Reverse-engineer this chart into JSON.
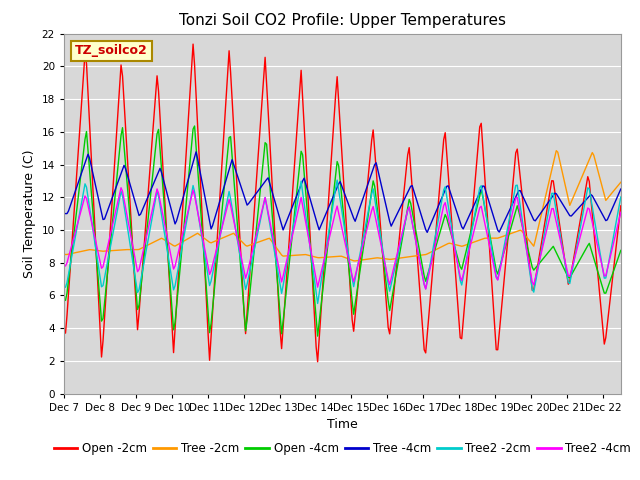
{
  "title": "Tonzi Soil CO2 Profile: Upper Temperatures",
  "xlabel": "Time",
  "ylabel": "Soil Temperature (C)",
  "annotation": "TZ_soilco2",
  "ylim": [
    0,
    22
  ],
  "xlim": [
    0,
    15.5
  ],
  "yticks": [
    0,
    2,
    4,
    6,
    8,
    10,
    12,
    14,
    16,
    18,
    20,
    22
  ],
  "xtick_labels": [
    "Dec 7",
    "Dec 8",
    "Dec 9",
    "Dec 10",
    "Dec 11",
    "Dec 12",
    "Dec 13",
    "Dec 14",
    "Dec 15",
    "Dec 16",
    "Dec 17",
    "Dec 18",
    "Dec 19",
    "Dec 20",
    "Dec 21",
    "Dec 22"
  ],
  "series_colors": [
    "#ff0000",
    "#ff9900",
    "#00cc00",
    "#0000cc",
    "#00cccc",
    "#ff00ff"
  ],
  "series_labels": [
    "Open -2cm",
    "Tree -2cm",
    "Open -4cm",
    "Tree -4cm",
    "Tree2 -2cm",
    "Tree2 -4cm"
  ],
  "plot_bg_color": "#d8d8d8",
  "title_fontsize": 11,
  "label_fontsize": 9,
  "tick_fontsize": 7.5,
  "legend_fontsize": 8.5
}
